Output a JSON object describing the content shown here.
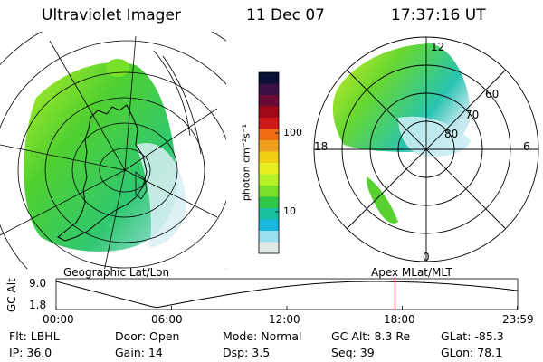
{
  "header": {
    "instrument": "Ultraviolet Imager",
    "date": "11 Dec 07",
    "time": "17:37:16 UT"
  },
  "left_panel": {
    "label": "Geographic Lat/Lon"
  },
  "right_panel": {
    "label": "Apex  MLat/MLT",
    "mlt_labels": {
      "top": "12",
      "bottom": "0",
      "left": "18",
      "right": "6"
    },
    "lat_labels": [
      "60",
      "70",
      "80"
    ]
  },
  "colorbar": {
    "unit": "photon cm⁻²s⁻¹",
    "ticks": [
      "100",
      "10"
    ],
    "colors": [
      "#0a0f3a",
      "#3a0f45",
      "#6a0a35",
      "#a00818",
      "#d01818",
      "#f06a10",
      "#f0a020",
      "#f0d010",
      "#e8f020",
      "#b8f028",
      "#78e028",
      "#30c848",
      "#18c0a0",
      "#18b8e0",
      "#9ae0f0",
      "#e0e8e8"
    ]
  },
  "altitude_plot": {
    "ylabel": "GC Alt",
    "ymax_label": "9.0",
    "ymin_label": "1.8",
    "ymin": 1.8,
    "ymax": 9.0,
    "x_ticks": [
      "00:00",
      "06:00",
      "12:00",
      "18:00",
      "23:59"
    ],
    "current_time_hours": 17.62,
    "marker_color": "#e02020"
  },
  "info_table": {
    "row1": [
      {
        "label": "Flt:",
        "value": "LBHL"
      },
      {
        "label": "Door:",
        "value": "Open"
      },
      {
        "label": "Mode:",
        "value": "Normal"
      },
      {
        "label": "GC Alt:",
        "value": "8.3 Re"
      },
      {
        "label": "GLat:",
        "value": "-85.3"
      }
    ],
    "row2": [
      {
        "label": "IP:",
        "value": "36.0"
      },
      {
        "label": "Gain:",
        "value": "14"
      },
      {
        "label": "Dsp:",
        "value": "3.5"
      },
      {
        "label": "Seq:",
        "value": "39"
      },
      {
        "label": "GLon:",
        "value": "78.1"
      }
    ]
  }
}
